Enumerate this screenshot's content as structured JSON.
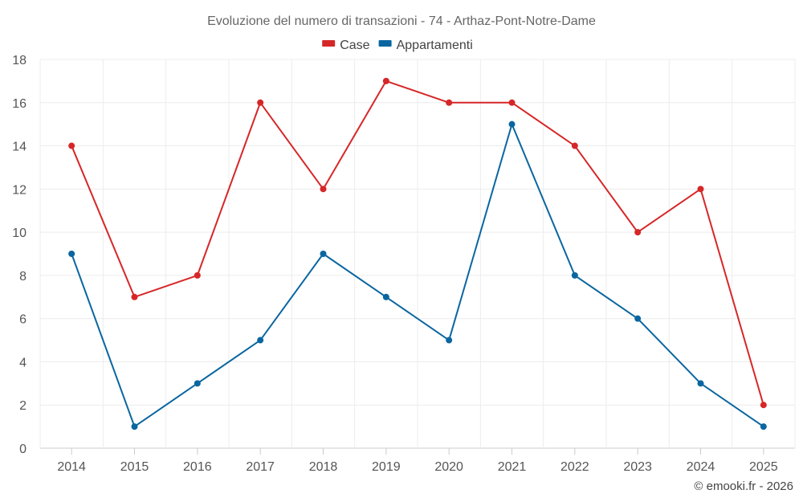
{
  "chart_data": {
    "type": "line",
    "title": "Evoluzione del numero di transazioni - 74 - Arthaz-Pont-Notre-Dame",
    "x": [
      "2014",
      "2015",
      "2016",
      "2017",
      "2018",
      "2019",
      "2020",
      "2021",
      "2022",
      "2023",
      "2024",
      "2025"
    ],
    "ylim": [
      0,
      18
    ],
    "yticks": [
      0,
      2,
      4,
      6,
      8,
      10,
      12,
      14,
      16,
      18
    ],
    "grid": true,
    "legend_position": "top-center",
    "series": [
      {
        "name": "Case",
        "color": "#d62728",
        "values": [
          14,
          7,
          8,
          16,
          12,
          17,
          16,
          16,
          14,
          10,
          12,
          2
        ]
      },
      {
        "name": "Appartamenti",
        "color": "#0a66a0",
        "values": [
          9,
          1,
          3,
          5,
          9,
          7,
          5,
          15,
          8,
          6,
          3,
          1
        ]
      }
    ],
    "credit": "© emooki.fr - 2026"
  }
}
